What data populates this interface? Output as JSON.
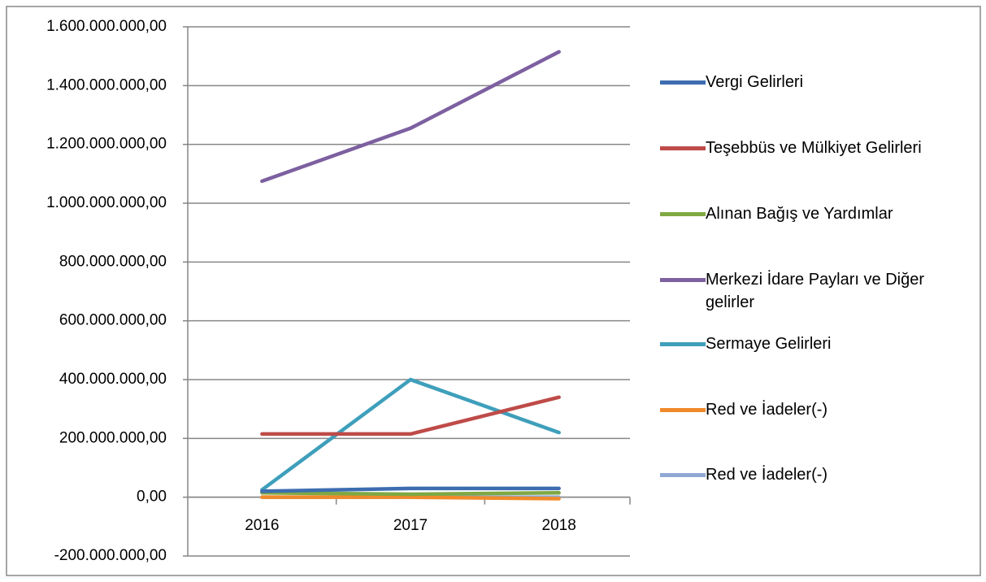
{
  "chart_data": {
    "type": "line",
    "categories": [
      "2016",
      "2017",
      "2018"
    ],
    "series": [
      {
        "name": "Vergi Gelirleri",
        "color": "#3d6db0",
        "values": [
          20000000,
          30000000,
          30000000
        ]
      },
      {
        "name": "Teşebbüs ve Mülkiyet Gelirleri",
        "color": "#be4b48",
        "values": [
          215000000,
          215000000,
          340000000
        ]
      },
      {
        "name": "Alınan Bağış ve Yardımlar",
        "color": "#7fa843",
        "values": [
          15000000,
          10000000,
          15000000
        ]
      },
      {
        "name": "Merkezi İdare Payları ve Diğer gelirler",
        "color": "#7d60a0",
        "values": [
          1075000000,
          1255000000,
          1515000000
        ]
      },
      {
        "name": "Sermaye Gelirleri",
        "color": "#3e9fbb",
        "values": [
          25000000,
          400000000,
          220000000
        ]
      },
      {
        "name": "Red ve İadeler(-)",
        "color": "#f08a2a",
        "values": [
          0,
          0,
          -5000000
        ]
      },
      {
        "name": "Red ve İadeler(-)",
        "color": "#90a8d4",
        "values": [
          0,
          0,
          0
        ]
      }
    ],
    "ylim": [
      -200000000,
      1600000000
    ],
    "yticks": [
      {
        "value": -200000000,
        "label": "-200.000.000,00"
      },
      {
        "value": 0,
        "label": "0,00"
      },
      {
        "value": 200000000,
        "label": "200.000.000,00"
      },
      {
        "value": 400000000,
        "label": "400.000.000,00"
      },
      {
        "value": 600000000,
        "label": "600.000.000,00"
      },
      {
        "value": 800000000,
        "label": "800.000.000,00"
      },
      {
        "value": 1000000000,
        "label": "1.000.000.000,00"
      },
      {
        "value": 1200000000,
        "label": "1.200.000.000,00"
      },
      {
        "value": 1400000000,
        "label": "1.400.000.000,00"
      },
      {
        "value": 1600000000,
        "label": "1.600.000.000,00"
      }
    ],
    "grid": true,
    "legend": "right"
  }
}
